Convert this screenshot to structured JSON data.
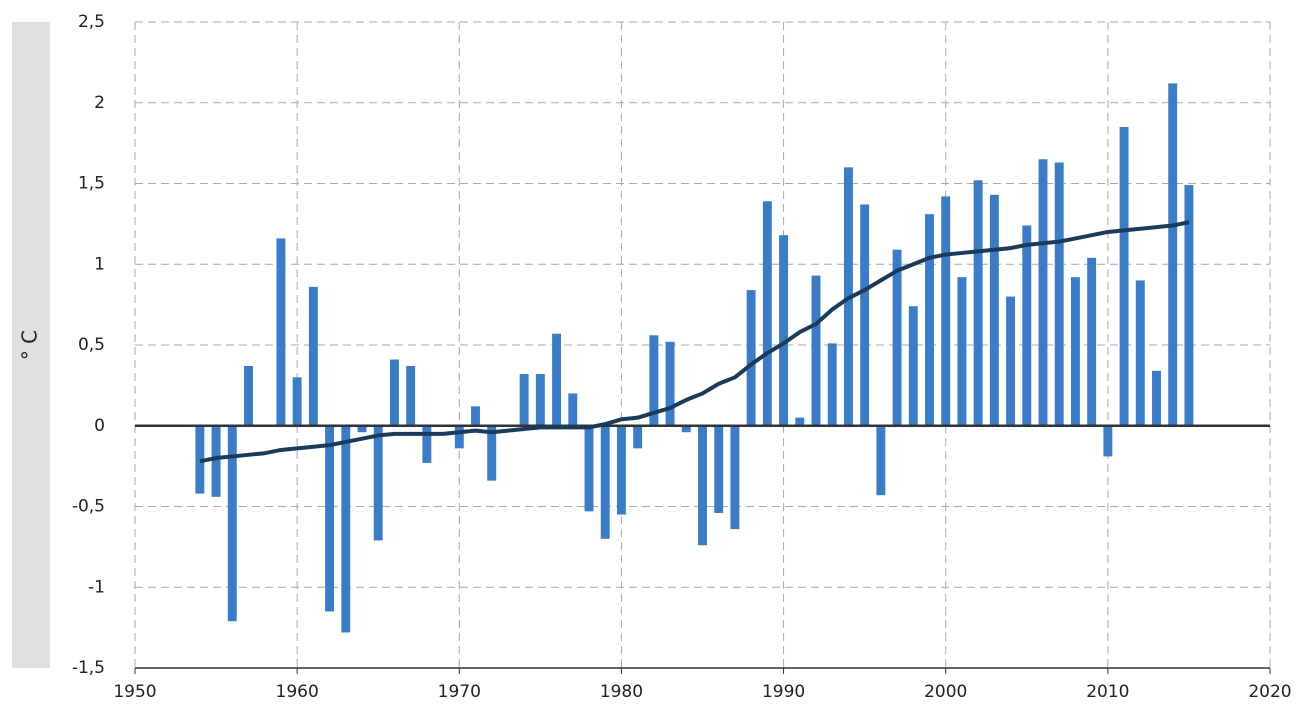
{
  "chart_data": {
    "type": "bar",
    "y_label": "° C",
    "x": [
      1954,
      1955,
      1956,
      1957,
      1958,
      1959,
      1960,
      1961,
      1962,
      1963,
      1964,
      1965,
      1966,
      1967,
      1968,
      1969,
      1970,
      1971,
      1972,
      1973,
      1974,
      1975,
      1976,
      1977,
      1978,
      1979,
      1980,
      1981,
      1982,
      1983,
      1984,
      1985,
      1986,
      1987,
      1988,
      1989,
      1990,
      1991,
      1992,
      1993,
      1994,
      1995,
      1996,
      1997,
      1998,
      1999,
      2000,
      2001,
      2002,
      2003,
      2004,
      2005,
      2006,
      2007,
      2008,
      2009,
      2010,
      2011,
      2012,
      2013,
      2014,
      2015
    ],
    "series": [
      {
        "type": "bar",
        "color": "#3a7cc8",
        "values": [
          -0.42,
          -0.44,
          -1.21,
          0.37,
          0,
          1.16,
          0.3,
          0.86,
          -1.15,
          -1.28,
          -0.04,
          -0.71,
          0.41,
          0.37,
          -0.23,
          0,
          -0.14,
          0.12,
          -0.34,
          0,
          0.32,
          0.32,
          0.57,
          0.2,
          -0.53,
          -0.7,
          -0.55,
          -0.14,
          0.56,
          0.52,
          -0.04,
          -0.74,
          -0.54,
          -0.64,
          0.84,
          1.39,
          1.18,
          0.05,
          0.93,
          0.51,
          1.6,
          1.37,
          -0.43,
          1.09,
          0.74,
          1.31,
          1.42,
          0.92,
          1.52,
          1.43,
          0.8,
          1.24,
          1.65,
          1.63,
          0.92,
          1.04,
          -0.19,
          1.85,
          0.9,
          0.34,
          2.12,
          1.49
        ]
      },
      {
        "type": "line",
        "color": "#1b3a5c",
        "values": [
          -0.22,
          -0.2,
          -0.19,
          -0.18,
          -0.17,
          -0.15,
          -0.14,
          -0.13,
          -0.12,
          -0.1,
          -0.08,
          -0.06,
          -0.05,
          -0.05,
          -0.05,
          -0.05,
          -0.04,
          -0.03,
          -0.04,
          -0.03,
          -0.02,
          -0.01,
          -0.01,
          -0.01,
          -0.01,
          0.01,
          0.04,
          0.05,
          0.08,
          0.11,
          0.16,
          0.2,
          0.26,
          0.3,
          0.38,
          0.45,
          0.51,
          0.58,
          0.63,
          0.72,
          0.79,
          0.84,
          0.9,
          0.96,
          1.0,
          1.04,
          1.06,
          1.07,
          1.08,
          1.09,
          1.1,
          1.12,
          1.13,
          1.14,
          1.16,
          1.18,
          1.2,
          1.21,
          1.22,
          1.23,
          1.24,
          1.26
        ]
      }
    ],
    "xlim": [
      1950,
      2020
    ],
    "xticks": [
      1950,
      1960,
      1970,
      1980,
      1990,
      2000,
      2010,
      2020
    ],
    "ylim": [
      -1.5,
      2.5
    ],
    "yticks": [
      {
        "value": -1.5,
        "label": "-1,5"
      },
      -1,
      {
        "value": -0.5,
        "label": "-0,5"
      },
      0,
      {
        "value": 0.5,
        "label": "0,5"
      },
      1,
      {
        "value": 1.5,
        "label": "1,5"
      },
      2,
      {
        "value": 2.5,
        "label": "2,5"
      }
    ],
    "grid": true
  }
}
